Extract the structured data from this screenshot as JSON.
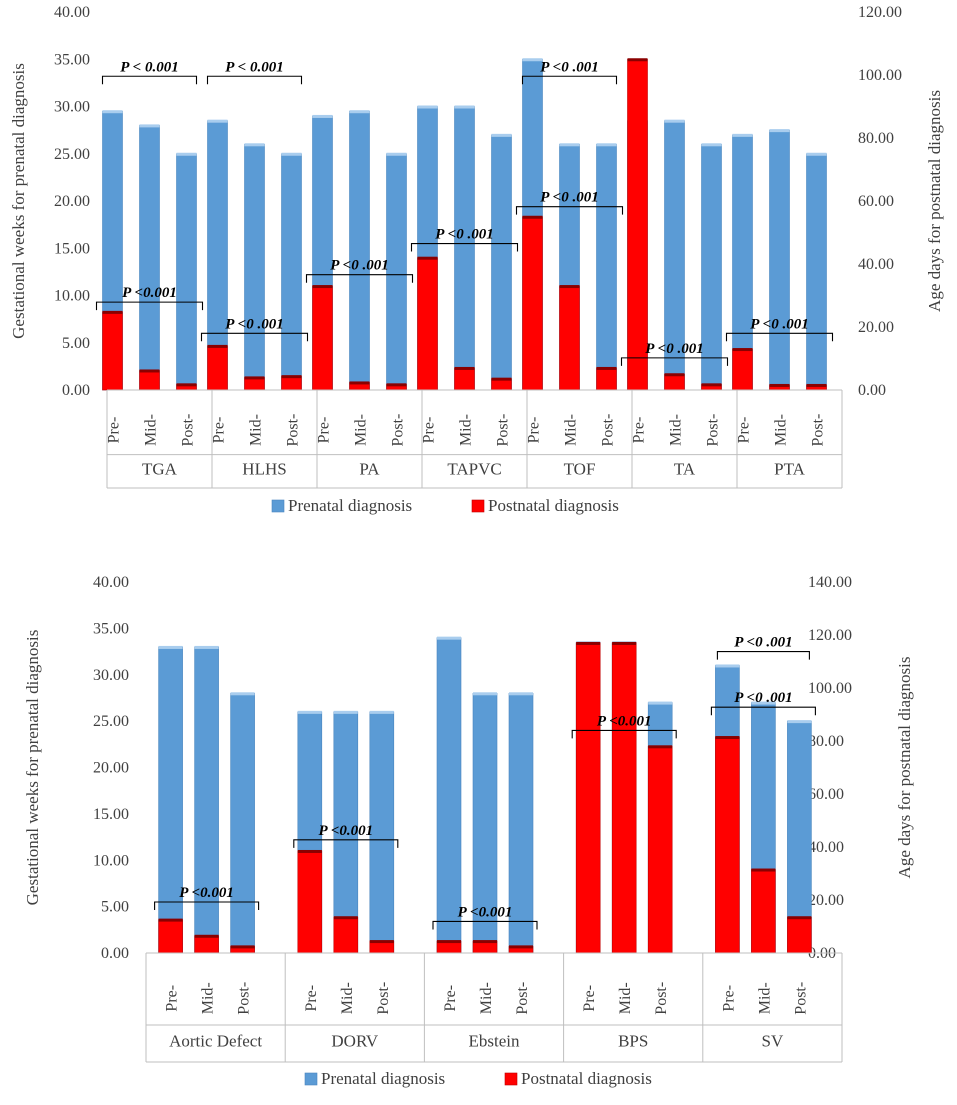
{
  "colors": {
    "prenatal": "#5b9bd5",
    "postnatal": "#ff0000",
    "axis": "#bfbfbf",
    "text": "#404040"
  },
  "chart_data": [
    {
      "type": "bar",
      "title": "",
      "ylabel": "Gestational weeks for prenatal diagnosis",
      "y2label": "Age days for postnatal diagnosis",
      "ylim": [
        0,
        40
      ],
      "y2lim": [
        0,
        120
      ],
      "yticks": [
        "0.00",
        "5.00",
        "10.00",
        "15.00",
        "20.00",
        "25.00",
        "30.00",
        "35.00",
        "40.00"
      ],
      "y2ticks": [
        "0.00",
        "20.00",
        "40.00",
        "60.00",
        "80.00",
        "100.00",
        "120.00"
      ],
      "subcategories": [
        "Pre-",
        "Mid-",
        "Post-"
      ],
      "groups": [
        "TGA",
        "HLHS",
        "PA",
        "TAPVC",
        "TOF",
        "TA",
        "PTA"
      ],
      "series": [
        {
          "name": "Prenatal diagnosis",
          "axis": "left",
          "values": [
            [
              29.5,
              28,
              25
            ],
            [
              28.5,
              26,
              25
            ],
            [
              29,
              29.5,
              25
            ],
            [
              30,
              30,
              27
            ],
            [
              35,
              26,
              26
            ],
            [
              28.5,
              28.5,
              26
            ],
            [
              27,
              27.5,
              25
            ]
          ]
        },
        {
          "name": "Postnatal diagnosis",
          "axis": "right",
          "values": [
            [
              24.8,
              6.2,
              1.8
            ],
            [
              14,
              4,
              4.4
            ],
            [
              33,
              2.4,
              1.8
            ],
            [
              42,
              7,
              3.6
            ],
            [
              55,
              33,
              7
            ],
            [
              105,
              5,
              1.8
            ],
            [
              13,
              1.6,
              1.6
            ]
          ]
        }
      ],
      "annotations": [
        {
          "group": 0,
          "text": "P  < 0.001",
          "level": "upper"
        },
        {
          "group": 1,
          "text": "P < 0.001",
          "level": "upper"
        },
        {
          "group": 4,
          "text": "P <0 .001",
          "level": "upper"
        },
        {
          "group": 0,
          "text": "P <0.001",
          "level": "lower",
          "y": 9.3
        },
        {
          "group": 1,
          "text": "P <0 .001",
          "level": "lower",
          "y": 6.0
        },
        {
          "group": 2,
          "text": "P <0 .001",
          "level": "lower",
          "y": 12.2
        },
        {
          "group": 3,
          "text": "P <0 .001",
          "level": "lower",
          "y": 15.5
        },
        {
          "group": 4,
          "text": "P <0 .001",
          "level": "lower",
          "y": 19.4
        },
        {
          "group": 5,
          "text": "P <0 .001",
          "level": "lower",
          "y": 3.4
        },
        {
          "group": 6,
          "text": "P <0 .001",
          "level": "lower",
          "y": 6.0
        }
      ],
      "legend": [
        "Prenatal diagnosis",
        "Postnatal diagnosis"
      ],
      "legend_position": "bottom"
    },
    {
      "type": "bar",
      "title": "",
      "ylabel": "Gestational weeks for prenatal diagnosis",
      "y2label": "Age days for postnatal diagnosis",
      "ylim": [
        0,
        40
      ],
      "y2lim": [
        0,
        140
      ],
      "yticks": [
        "0.00",
        "5.00",
        "10.00",
        "15.00",
        "20.00",
        "25.00",
        "30.00",
        "35.00",
        "40.00"
      ],
      "y2ticks": [
        "0.00",
        "20.00",
        "40.00",
        "60.00",
        "80.00",
        "100.00",
        "120.00",
        "140.00"
      ],
      "subcategories": [
        "Pre-",
        "Mid-",
        "Post-"
      ],
      "groups": [
        "Aortic Defect",
        "DORV",
        "Ebstein",
        "BPS",
        "SV"
      ],
      "series": [
        {
          "name": "Prenatal diagnosis",
          "axis": "left",
          "values": [
            [
              33,
              33,
              28
            ],
            [
              26,
              26,
              26
            ],
            [
              34,
              28,
              28
            ],
            [
              33.5,
              33.5,
              27
            ],
            [
              31,
              27,
              25
            ]
          ]
        },
        {
          "name": "Postnatal diagnosis",
          "axis": "right",
          "values": [
            [
              12.6,
              6.5,
              2.5
            ],
            [
              38.5,
              13.5,
              4.5
            ],
            [
              4.5,
              4.5,
              2.5
            ],
            [
              117,
              117,
              78
            ],
            [
              81.5,
              31.5,
              13.5
            ]
          ]
        }
      ],
      "annotations": [
        {
          "group": 4,
          "text": "P <0 .001",
          "level": "upper"
        },
        {
          "group": 0,
          "text": "P <0.001",
          "level": "lower",
          "y": 5.5
        },
        {
          "group": 1,
          "text": "P <0.001",
          "level": "lower",
          "y": 12.2
        },
        {
          "group": 2,
          "text": "P <0.001",
          "level": "lower",
          "y": 3.4
        },
        {
          "group": 3,
          "text": "P <0.001",
          "level": "lower",
          "y": 24.0
        },
        {
          "group": 4,
          "text": "P <0 .001",
          "level": "lower",
          "y": 26.5
        }
      ],
      "legend": [
        "Prenatal diagnosis",
        "Postnatal diagnosis"
      ],
      "legend_position": "bottom"
    }
  ]
}
